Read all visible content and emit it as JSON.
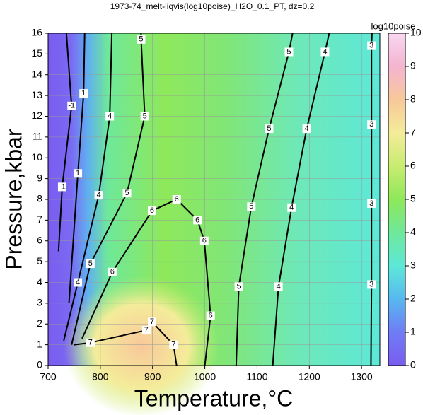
{
  "chart_data": {
    "type": "contour",
    "title": "1973-74_melt-liqvis(log10poise)_H2O_0.1_PT, dz=0.2",
    "x_label": "Temperature,°C",
    "y_label": "Pressure,kbar",
    "xlim": [
      700,
      1335
    ],
    "ylim": [
      0,
      16
    ],
    "xticks": [
      700,
      800,
      900,
      1000,
      1100,
      1200,
      1300
    ],
    "yticks": [
      0,
      1,
      2,
      3,
      4,
      5,
      6,
      7,
      8,
      9,
      10,
      11,
      12,
      13,
      14,
      15,
      16
    ],
    "grid": true,
    "colorbar": {
      "label": "log10poise",
      "lim": [
        0,
        10
      ],
      "ticks": [
        0,
        1,
        2,
        3,
        4,
        5,
        6,
        7,
        8,
        9,
        10
      ],
      "colors": [
        "#7a5cf0",
        "#6f7cf5",
        "#58b8f0",
        "#5de8d8",
        "#6ee89a",
        "#8ee85a",
        "#c8ec70",
        "#f4ec9a",
        "#f8c89a",
        "#f4b4d0",
        "#f8d8f0"
      ]
    },
    "contours": [
      {
        "level": -1,
        "x": [
          735,
          745,
          727,
          720
        ],
        "y": [
          16,
          12.5,
          8.6,
          5.5
        ]
      },
      {
        "level": 1,
        "x": [
          770,
          768,
          757,
          740
        ],
        "y": [
          16,
          13.1,
          9.25,
          3
        ]
      },
      {
        "level": 4,
        "x": [
          822,
          818,
          797,
          757,
          730
        ],
        "y": [
          16,
          12,
          8.2,
          4,
          1.2
        ]
      },
      {
        "level": 5,
        "x": [
          878,
          878,
          885,
          851,
          781,
          745
        ],
        "y": [
          16,
          15.7,
          12,
          8.3,
          4.9,
          1
        ]
      },
      {
        "level": 6,
        "x": [
          765,
          823,
          899,
          946,
          986,
          999,
          1011,
          1000
        ],
        "y": [
          1.3,
          4.5,
          7.45,
          8,
          7,
          6,
          2.4,
          0
        ]
      },
      {
        "level": 7,
        "x": [
          750,
          781,
          888,
          899,
          940,
          946
        ],
        "y": [
          1.0,
          1.1,
          1.7,
          2.1,
          1.0,
          0
        ]
      },
      {
        "level": 5,
        "x": [
          1168,
          1161,
          1123,
          1089,
          1065,
          1060
        ],
        "y": [
          16,
          15.1,
          11.4,
          7.65,
          3.8,
          0
        ]
      },
      {
        "level": 4,
        "x": [
          1238,
          1230,
          1195,
          1166,
          1141,
          1130
        ],
        "y": [
          16,
          15.1,
          11.4,
          7.6,
          3.8,
          0
        ]
      },
      {
        "level": 3,
        "x": [
          1320,
          1319,
          1319,
          1319,
          1319,
          1318
        ],
        "y": [
          16,
          15.4,
          11.6,
          7.8,
          3.9,
          0
        ]
      }
    ]
  }
}
